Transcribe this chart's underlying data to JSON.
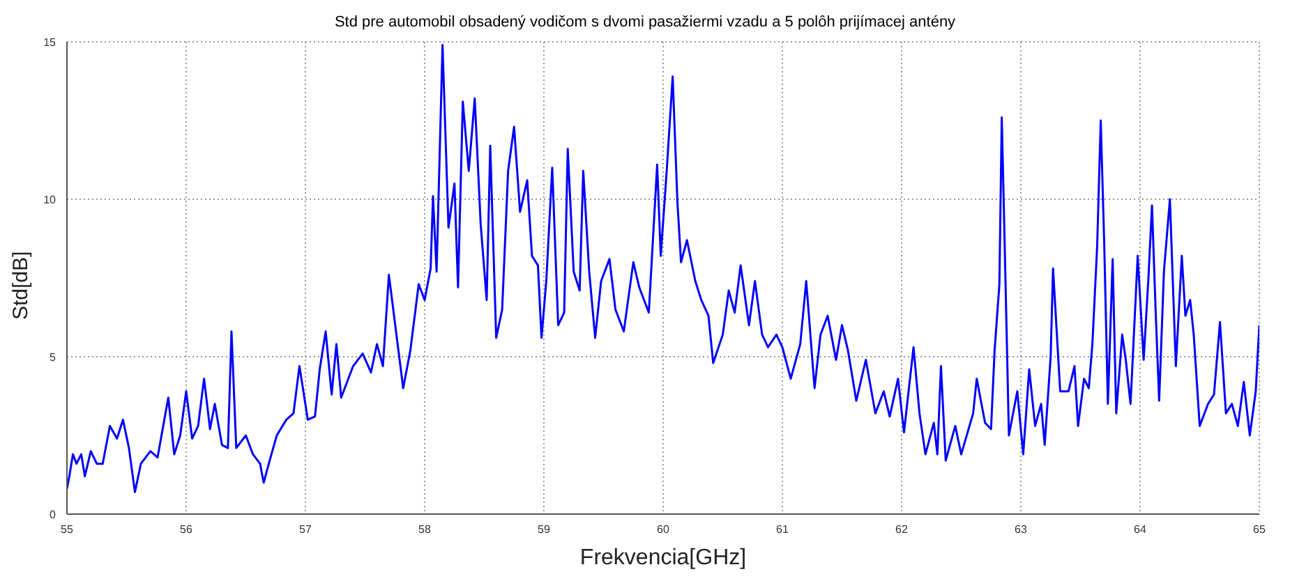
{
  "chart_data": {
    "type": "line",
    "title": "Std pre automobil obsadený vodičom s dvomi pasažiermi vzadu a 5 polôh prijímacej antény",
    "xlabel": "Frekvencia[GHz]",
    "ylabel": "Std[dB]",
    "x": [
      55.0,
      55.02,
      55.05,
      55.08,
      55.12,
      55.15,
      55.2,
      55.25,
      55.3,
      55.36,
      55.42,
      55.47,
      55.52,
      55.57,
      55.62,
      55.7,
      55.76,
      55.85,
      55.9,
      55.95,
      56.0,
      56.05,
      56.1,
      56.15,
      56.2,
      56.24,
      56.3,
      56.35,
      56.38,
      56.42,
      56.5,
      56.56,
      56.62,
      56.65,
      56.7,
      56.76,
      56.84,
      56.9,
      56.95,
      57.02,
      57.08,
      57.12,
      57.17,
      57.22,
      57.26,
      57.3,
      57.4,
      57.48,
      57.55,
      57.6,
      57.65,
      57.7,
      57.78,
      57.82,
      57.88,
      57.95,
      58.0,
      58.05,
      58.07,
      58.1,
      58.15,
      58.2,
      58.25,
      58.28,
      58.32,
      58.37,
      58.42,
      58.47,
      58.52,
      58.55,
      58.6,
      58.65,
      58.7,
      58.75,
      58.8,
      58.86,
      58.9,
      58.95,
      58.98,
      59.02,
      59.07,
      59.12,
      59.17,
      59.2,
      59.25,
      59.3,
      59.33,
      59.38,
      59.43,
      59.48,
      59.55,
      59.6,
      59.67,
      59.75,
      59.8,
      59.88,
      59.95,
      59.98,
      60.03,
      60.08,
      60.12,
      60.15,
      60.2,
      60.27,
      60.32,
      60.38,
      60.42,
      60.5,
      60.55,
      60.6,
      60.65,
      60.72,
      60.77,
      60.83,
      60.88,
      60.95,
      61.0,
      61.07,
      61.15,
      61.2,
      61.27,
      61.32,
      61.38,
      61.45,
      61.5,
      61.55,
      61.62,
      61.7,
      61.78,
      61.85,
      61.9,
      61.97,
      62.02,
      62.1,
      62.15,
      62.2,
      62.27,
      62.3,
      62.33,
      62.37,
      62.45,
      62.5,
      62.6,
      62.63,
      62.7,
      62.75,
      62.78,
      62.82,
      62.84,
      62.86,
      62.9,
      62.97,
      63.02,
      63.07,
      63.12,
      63.17,
      63.2,
      63.25,
      63.27,
      63.33,
      63.4,
      63.45,
      63.48,
      63.53,
      63.57,
      63.6,
      63.64,
      63.67,
      63.7,
      63.73,
      63.77,
      63.8,
      63.85,
      63.88,
      63.92,
      63.98,
      64.03,
      64.07,
      64.1,
      64.13,
      64.16,
      64.2,
      64.25,
      64.3,
      64.35,
      64.38,
      64.42,
      64.45,
      64.5,
      64.57,
      64.62,
      64.67,
      64.72,
      64.77,
      64.82,
      64.87,
      64.92,
      64.97,
      65.0
    ],
    "series": [
      {
        "color": "#0000ff",
        "values": [
          0.8,
          1.2,
          1.9,
          1.6,
          1.9,
          1.2,
          2.0,
          1.6,
          1.6,
          2.8,
          2.4,
          3.0,
          2.1,
          0.7,
          1.6,
          2.0,
          1.8,
          3.7,
          1.9,
          2.5,
          3.9,
          2.4,
          2.8,
          4.3,
          2.7,
          3.5,
          2.2,
          2.1,
          5.8,
          2.1,
          2.5,
          1.9,
          1.6,
          1.0,
          1.7,
          2.5,
          3.0,
          3.2,
          4.7,
          3.0,
          3.1,
          4.6,
          5.8,
          3.8,
          5.4,
          3.7,
          4.7,
          5.1,
          4.5,
          5.4,
          4.7,
          7.6,
          5.2,
          4.0,
          5.2,
          7.3,
          6.8,
          7.8,
          10.1,
          7.7,
          14.9,
          9.1,
          10.5,
          7.2,
          13.1,
          10.9,
          13.2,
          9.2,
          6.8,
          11.7,
          5.6,
          6.5,
          10.9,
          12.3,
          9.6,
          10.6,
          8.2,
          7.9,
          5.6,
          7.4,
          11.0,
          6.0,
          6.4,
          11.6,
          7.7,
          7.1,
          10.9,
          7.7,
          5.6,
          7.4,
          8.1,
          6.5,
          5.8,
          8.0,
          7.2,
          6.4,
          11.1,
          8.2,
          10.9,
          13.9,
          9.9,
          8.0,
          8.7,
          7.4,
          6.8,
          6.3,
          4.8,
          5.7,
          7.1,
          6.4,
          7.9,
          6.0,
          7.4,
          5.7,
          5.3,
          5.7,
          5.3,
          4.3,
          5.4,
          7.4,
          4.0,
          5.7,
          6.3,
          4.9,
          6.0,
          5.2,
          3.6,
          4.9,
          3.2,
          3.9,
          3.1,
          4.3,
          2.6,
          5.3,
          3.2,
          1.9,
          2.9,
          1.9,
          4.7,
          1.7,
          2.8,
          1.9,
          3.2,
          4.3,
          2.9,
          2.7,
          5.2,
          7.3,
          12.6,
          9.3,
          2.5,
          3.9,
          1.9,
          4.6,
          2.8,
          3.5,
          2.2,
          5.0,
          7.8,
          3.9,
          3.9,
          4.7,
          2.8,
          4.3,
          4.0,
          5.4,
          8.5,
          12.5,
          8.5,
          3.5,
          8.1,
          3.2,
          5.7,
          4.9,
          3.5,
          8.2,
          4.9,
          7.5,
          9.8,
          6.5,
          3.6,
          7.7,
          10.0,
          4.7,
          8.2,
          6.3,
          6.8,
          5.7,
          2.8,
          3.5,
          3.8,
          6.1,
          3.2,
          3.5,
          2.8,
          4.2,
          2.5,
          3.9,
          6.0
        ]
      }
    ],
    "xlim": [
      55,
      65
    ],
    "ylim": [
      0,
      15
    ],
    "xticks": [
      55,
      56,
      57,
      58,
      59,
      60,
      61,
      62,
      63,
      64,
      65
    ],
    "yticks": [
      0,
      5,
      10,
      15
    ],
    "grid": true,
    "line_style": "solid",
    "marker": "none"
  }
}
